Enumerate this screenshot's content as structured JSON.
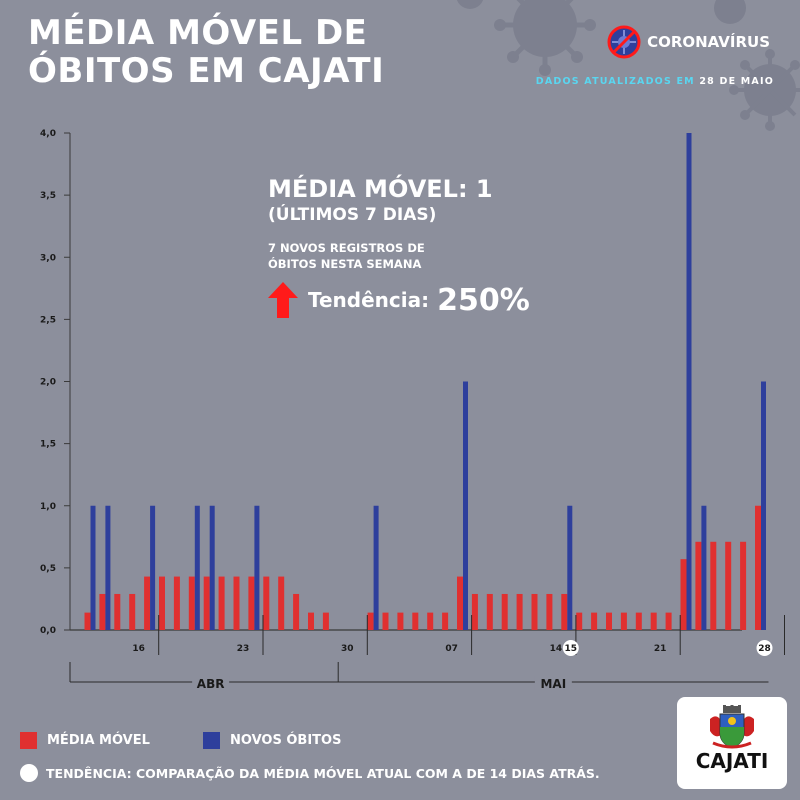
{
  "title_line1": "MÉDIA MÓVEL DE",
  "title_line2": "ÓBITOS EM CAJATI",
  "brand": {
    "label": "CORONAVÍRUS",
    "icon": "no-virus-icon"
  },
  "updated": {
    "prefix": "DADOS ATUALIZADOS EM",
    "date": "28 DE MAIO"
  },
  "summary": {
    "title": "MÉDIA MÓVEL: 1",
    "subtitle": "(ÚLTIMOS 7 DIAS)",
    "note": "7 NOVOS REGISTROS DE ÓBITOS NESTA SEMANA",
    "trend_label": "Tendência:",
    "trend_value": "250%",
    "trend_icon": "up-arrow-icon"
  },
  "legend": {
    "moving_avg": "MÉDIA MÓVEL",
    "new_deaths": "NOVOS ÓBITOS"
  },
  "footnote": "TENDÊNCIA: COMPARAÇÃO DA MÉDIA MÓVEL ATUAL COM A DE 14 DIAS ATRÁS.",
  "logo": {
    "text": "CAJATI",
    "icon": "city-coat-of-arms-icon"
  },
  "colors": {
    "background": "#8c8f9c",
    "moving_avg": "#e03030",
    "new_deaths": "#2e3f9c",
    "accent_cyan": "#5ad6f0",
    "trend_arrow": "#ff1a1a"
  },
  "chart_data": {
    "type": "bar",
    "start_date": "2020-04-13",
    "end_date": "2020-05-28",
    "ylim": [
      0,
      4
    ],
    "yticks": [
      "0,0",
      "0,5",
      "1,0",
      "1,5",
      "2,0",
      "2,5",
      "3,0",
      "3,5",
      "4,0"
    ],
    "xtick_labels": [
      {
        "date": "2020-04-16",
        "label": "16"
      },
      {
        "date": "2020-04-23",
        "label": "23"
      },
      {
        "date": "2020-04-30",
        "label": "30"
      },
      {
        "date": "2020-05-07",
        "label": "07"
      },
      {
        "date": "2020-05-14",
        "label": "14"
      },
      {
        "date": "2020-05-15",
        "label": "15",
        "highlight": true
      },
      {
        "date": "2020-05-21",
        "label": "21"
      },
      {
        "date": "2020-05-28",
        "label": "28",
        "highlight": true
      }
    ],
    "months": [
      {
        "label": "ABR",
        "start": "2020-04-13",
        "end": "2020-04-30"
      },
      {
        "label": "MAI",
        "start": "2020-05-01",
        "end": "2020-05-28"
      }
    ],
    "series": [
      {
        "name": "MÉDIA MÓVEL",
        "color": "#e03030",
        "values": [
          0.14,
          0.29,
          0.29,
          0.29,
          0.43,
          0.43,
          0.43,
          0.43,
          0.43,
          0.43,
          0.43,
          0.43,
          0.43,
          0.43,
          0.29,
          0.14,
          0.14,
          0,
          0,
          0.14,
          0.14,
          0.14,
          0.14,
          0.14,
          0.14,
          0.43,
          0.29,
          0.29,
          0.29,
          0.29,
          0.29,
          0.29,
          0.29,
          0.14,
          0.14,
          0.14,
          0.14,
          0.14,
          0.14,
          0.14,
          0.57,
          0.71,
          0.71,
          0.71,
          0.71,
          1.0
        ]
      },
      {
        "name": "NOVOS ÓBITOS",
        "color": "#2e3f9c",
        "values": [
          1,
          1,
          0,
          0,
          1,
          0,
          0,
          1,
          1,
          0,
          0,
          1,
          0,
          0,
          0,
          0,
          0,
          0,
          0,
          1,
          0,
          0,
          0,
          0,
          0,
          2,
          0,
          0,
          0,
          0,
          0,
          0,
          1,
          0,
          0,
          0,
          0,
          0,
          0,
          0,
          4,
          1,
          0,
          0,
          0,
          2
        ]
      }
    ]
  }
}
